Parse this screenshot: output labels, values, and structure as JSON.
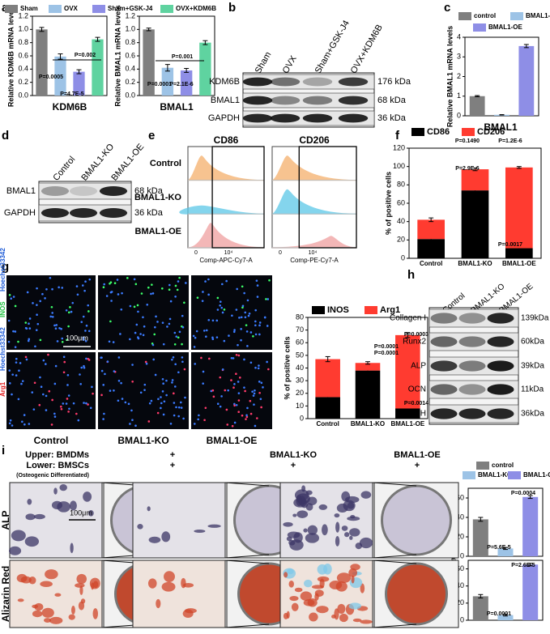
{
  "chart_data": [
    {
      "type": "bar",
      "ylabel": "Relative KDM6B mRNA levels",
      "xlabel": "KDM6B",
      "categories": [
        "Sham",
        "OVX",
        "Sham+GSK-J4",
        "OVX+KDM6B"
      ],
      "colors": [
        "#7f7f7f",
        "#9dc3e6",
        "#8e8ee6",
        "#5fd3a0"
      ],
      "values": [
        1.0,
        0.59,
        0.36,
        0.85
      ],
      "errors": [
        0.03,
        0.04,
        0.03,
        0.03
      ],
      "ylim": [
        0,
        1.2
      ],
      "yticks": [
        {
          "value": 0,
          "label": "0.0"
        },
        0.2,
        0.4,
        0.6,
        0.8,
        {
          "value": 1,
          "label": "1.0"
        },
        1.2
      ],
      "annotations": [
        "P=0.0005",
        "P=4.7E-5",
        "P=0.002"
      ]
    },
    {
      "type": "bar",
      "ylabel": "Relative BMAL1 mRNA levels",
      "xlabel": "BMAL1",
      "colors": [
        "#7f7f7f",
        "#9dc3e6",
        "#8e8ee6",
        "#5fd3a0"
      ],
      "values": [
        1.0,
        0.42,
        0.38,
        0.8
      ],
      "errors": [
        0.02,
        0.05,
        0.03,
        0.03
      ],
      "ylim": [
        0,
        1.2
      ],
      "yticks": [
        {
          "value": 0,
          "label": "0.0"
        },
        0.2,
        0.4,
        0.6,
        0.8,
        {
          "value": 1,
          "label": "1.0"
        },
        1.2
      ],
      "annotations": [
        "P=0.0001",
        "P=2.1E-6",
        "P=0.001"
      ]
    },
    {
      "type": "bar",
      "ylabel": "Relative BMAL1 mRNA levels",
      "xlabel": "BMAL1",
      "categories": [
        "control",
        "BMAL1-KO",
        "BMAL1-OE"
      ],
      "colors": [
        "#7f7f7f",
        "#9dc3e6",
        "#8e8ee6"
      ],
      "values": [
        1.0,
        0.05,
        3.55
      ],
      "errors": [
        0.03,
        0.01,
        0.08
      ],
      "ylim": [
        0,
        4
      ],
      "yticks": [
        0,
        1,
        2,
        3,
        4
      ],
      "annotations": []
    },
    {
      "type": "stacked_bar",
      "ylabel": "% of positive cells",
      "categories": [
        "Control",
        "BMAL1-KO",
        "BMAL1-OE"
      ],
      "series": [
        {
          "name": "CD86",
          "color": "#000000",
          "values": [
            21,
            74,
            11
          ],
          "errors": [
            2,
            1.5,
            1
          ]
        },
        {
          "name": "CD206",
          "color": "#ff3b30",
          "values": [
            21,
            23,
            88
          ],
          "errors": [
            2,
            1.5,
            1
          ]
        }
      ],
      "ylim": [
        0,
        120
      ],
      "yticks": [
        0,
        20,
        40,
        60,
        80,
        100,
        120
      ],
      "annotations": [
        "P=0.1490",
        "P=2.9E-6",
        "P=1.2E-6",
        "P=0.0017"
      ]
    },
    {
      "type": "stacked_bar",
      "ylabel": "% of positive cells",
      "categories": [
        "Control",
        "BMAL1-KO",
        "BMAL1-OE"
      ],
      "series": [
        {
          "name": "INOS",
          "color": "#000000",
          "values": [
            17,
            38,
            8
          ],
          "errors": [
            1.5,
            1.5,
            1
          ]
        },
        {
          "name": "Arg1",
          "color": "#ff3b30",
          "values": [
            30,
            6,
            58
          ],
          "errors": [
            2,
            1,
            2
          ]
        }
      ],
      "ylim": [
        0,
        80
      ],
      "yticks": [
        0,
        10,
        20,
        30,
        40,
        50,
        60,
        70,
        80
      ],
      "annotations": [
        "P=0.0001",
        "P=0.0001",
        "P=0.0003",
        "P=0.0014"
      ]
    },
    {
      "type": "bar",
      "ylabel": "ALP % Area",
      "categories": [
        "control",
        "BMAL1-KO",
        "BMAL1-OE"
      ],
      "colors": [
        "#7f7f7f",
        "#9dc3e6",
        "#8e8ee6"
      ],
      "values": [
        38,
        8,
        61
      ],
      "errors": [
        2,
        1,
        1.5
      ],
      "ylim": [
        0,
        70
      ],
      "yticks": [
        0,
        20,
        40,
        60
      ],
      "annotations": [
        "P=5.6E-5",
        "P=0.0004"
      ]
    },
    {
      "type": "bar",
      "ylabel": "Alizarin red % Area",
      "colors": [
        "#7f7f7f",
        "#9dc3e6",
        "#8e8ee6"
      ],
      "values": [
        28,
        6,
        65
      ],
      "errors": [
        2,
        1,
        1.5
      ],
      "ylim": [
        0,
        70
      ],
      "yticks": [
        0,
        20,
        40,
        60
      ],
      "annotations": [
        "P=0.0001",
        "P=2.6E-5"
      ]
    }
  ],
  "panel_labels": [
    "a",
    "b",
    "c",
    "d",
    "e",
    "f",
    "g",
    "h",
    "i"
  ],
  "blot_b": {
    "lanes": [
      "Sham",
      "OVX",
      "Sham+GSK-J4",
      "OVX+KDM6B"
    ],
    "rows": [
      {
        "name": "KDM6B",
        "size": "176 kDa"
      },
      {
        "name": "BMAL1",
        "size": "68 kDa"
      },
      {
        "name": "GAPDH",
        "size": "36 kDa"
      }
    ]
  },
  "blot_d": {
    "lanes": [
      "Control",
      "BMAL1-KO",
      "BMAL1-OE"
    ],
    "rows": [
      {
        "name": "BMAL1",
        "size": "68 kDa"
      },
      {
        "name": "GAPDH",
        "size": "36 kDa"
      }
    ]
  },
  "blot_i": {
    "lanes": [
      "Control",
      "BMAL1-KO",
      "BMAL1-OE"
    ],
    "rows": [
      {
        "name": "Collagen I",
        "size": "139kDa"
      },
      {
        "name": "Runx2",
        "size": "60kDa"
      },
      {
        "name": "ALP",
        "size": "39kDa"
      },
      {
        "name": "OCN",
        "size": "11kDa"
      },
      {
        "name": "GAPDH",
        "size": "36kDa"
      }
    ]
  },
  "flow_e": {
    "markers": [
      "CD86",
      "CD206"
    ],
    "groups": [
      "Control",
      "BMAL1-KO",
      "BMAL1-OE"
    ],
    "axis_labels": [
      "Comp-APC-Cy7-A",
      "Comp-PE-Cy7-A"
    ],
    "tick_labels": [
      "0",
      "10⁴"
    ]
  },
  "images_g": {
    "rows": [
      {
        "stain": "INOS",
        "nuclear": "Hoechst33342"
      },
      {
        "stain": "Arg1",
        "nuclear": "Hoechst33342"
      }
    ],
    "scale": "100μm",
    "groups": [
      "Control",
      "BMAL1-KO",
      "BMAL1-OE"
    ]
  },
  "images_h": {
    "upper": "Upper: BMDMs",
    "lower": "Lower: BMSCs",
    "note": "(Osteogenic Differentiated)",
    "upper_marks": [
      "+",
      "BMAL1-KO",
      "BMAL1-OE"
    ],
    "lower_marks": [
      "+",
      "+",
      "+"
    ],
    "rows": [
      "ALP",
      "Alizarin Red"
    ],
    "scale": "100μm"
  }
}
